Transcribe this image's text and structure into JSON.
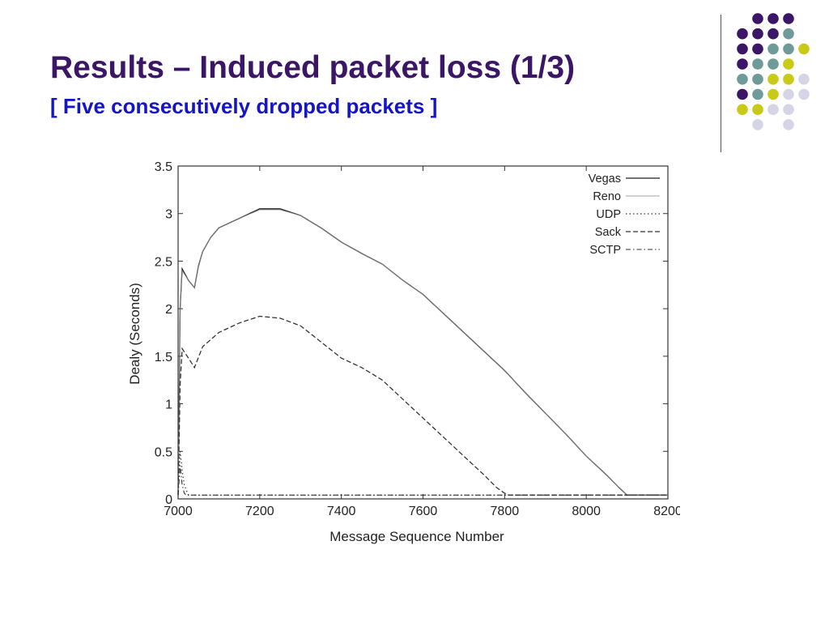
{
  "slide": {
    "title": "Results – Induced packet loss (1/3)",
    "subtitle": "[ Five consecutively dropped packets ]"
  },
  "decor": {
    "dot_colors": {
      "purple": "#3b1566",
      "teal": "#6e9a9a",
      "yellow": "#c9c917",
      "lavender": "#d5d5e6"
    },
    "title_color": "#3b1566",
    "subtitle_color": "#1515c8"
  },
  "chart_data": {
    "type": "line",
    "xlabel": "Message Sequence Number",
    "ylabel": "Dealy (Seconds)",
    "xlim": [
      7000,
      8200
    ],
    "ylim": [
      0,
      3.5
    ],
    "xticks": [
      "7000",
      "7200",
      "7400",
      "7600",
      "7800",
      "8000",
      "8200"
    ],
    "yticks": [
      "0",
      "0.5",
      "1",
      "1.5",
      "2",
      "2.5",
      "3",
      "3.5"
    ],
    "legend_position": "top-right",
    "grid": false,
    "series": [
      {
        "name": "Vegas",
        "style": "solid",
        "x": [
          7000,
          7005,
          7010,
          7025,
          7040,
          7050,
          7060,
          7080,
          7100,
          7150,
          7200,
          7250,
          7300,
          7350,
          7400,
          7450,
          7500,
          7550,
          7600,
          7650,
          7700,
          7750,
          7800,
          7850,
          7900,
          7950,
          8000,
          8050,
          8080,
          8100,
          8200
        ],
        "y": [
          0.04,
          2.0,
          2.42,
          2.3,
          2.22,
          2.45,
          2.6,
          2.75,
          2.85,
          2.95,
          3.05,
          3.05,
          2.98,
          2.85,
          2.7,
          2.58,
          2.47,
          2.3,
          2.15,
          1.95,
          1.75,
          1.55,
          1.35,
          1.12,
          0.9,
          0.68,
          0.45,
          0.25,
          0.12,
          0.04,
          0.04
        ]
      },
      {
        "name": "Reno",
        "style": "thin",
        "x": [
          7000,
          7005,
          7010,
          7025,
          7040,
          7050,
          7060,
          7080,
          7100,
          7150,
          7200,
          7250,
          7300,
          7350,
          7400,
          7450,
          7500,
          7550,
          7600,
          7650,
          7700,
          7750,
          7800,
          7850,
          7900,
          7950,
          8000,
          8050,
          8080,
          8100,
          8200
        ],
        "y": [
          0.04,
          2.0,
          2.4,
          2.3,
          2.22,
          2.44,
          2.6,
          2.75,
          2.85,
          2.95,
          3.04,
          3.04,
          2.98,
          2.85,
          2.7,
          2.58,
          2.47,
          2.3,
          2.15,
          1.95,
          1.75,
          1.55,
          1.35,
          1.12,
          0.9,
          0.68,
          0.45,
          0.25,
          0.12,
          0.04,
          0.04
        ]
      },
      {
        "name": "UDP",
        "style": "dotted",
        "x": [
          7000,
          7005,
          7010,
          7015,
          7025,
          7200,
          8200
        ],
        "y": [
          0.04,
          0.5,
          0.3,
          0.15,
          0.04,
          0.04,
          0.04
        ]
      },
      {
        "name": "Sack",
        "style": "dashed",
        "x": [
          7000,
          7005,
          7010,
          7030,
          7040,
          7060,
          7100,
          7150,
          7200,
          7250,
          7300,
          7350,
          7400,
          7450,
          7500,
          7550,
          7600,
          7650,
          7700,
          7750,
          7780,
          7800,
          7810,
          8200
        ],
        "y": [
          0.04,
          1.2,
          1.58,
          1.45,
          1.38,
          1.6,
          1.75,
          1.85,
          1.92,
          1.9,
          1.82,
          1.65,
          1.48,
          1.38,
          1.25,
          1.05,
          0.85,
          0.65,
          0.45,
          0.25,
          0.12,
          0.06,
          0.04,
          0.04
        ]
      },
      {
        "name": "SCTP",
        "style": "dashdot",
        "x": [
          7000,
          7005,
          7010,
          7015,
          7020,
          8200
        ],
        "y": [
          0.04,
          0.35,
          0.15,
          0.06,
          0.04,
          0.04
        ]
      }
    ]
  }
}
